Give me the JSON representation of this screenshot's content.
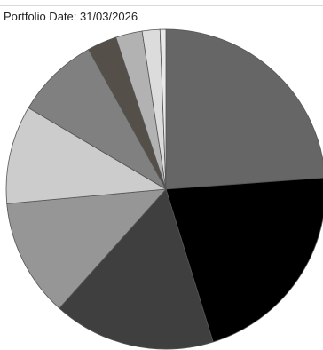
{
  "header": {
    "portfolio_date": "Portfolio Date: 31/03/2026"
  },
  "chart_data": {
    "type": "pie",
    "start_angle_deg": 90,
    "direction": "clockwise",
    "slices": [
      {
        "value": 24.0,
        "color": "#666666"
      },
      {
        "value": 21.5,
        "color": "#000000"
      },
      {
        "value": 16.5,
        "color": "#3f3f3f"
      },
      {
        "value": 12.0,
        "color": "#969696"
      },
      {
        "value": 10.0,
        "color": "#cccccc"
      },
      {
        "value": 8.5,
        "color": "#808080"
      },
      {
        "value": 3.0,
        "color": "#554f4a"
      },
      {
        "value": 2.7,
        "color": "#b2b2b2"
      },
      {
        "value": 1.8,
        "color": "#dcdcdc"
      },
      {
        "value": 0.6,
        "color": "#e8e8e8"
      }
    ],
    "stroke_color": "#555555"
  }
}
